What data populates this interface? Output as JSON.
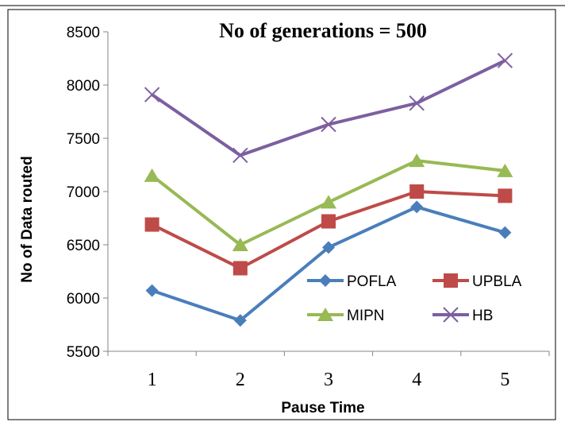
{
  "chart_data": {
    "type": "line",
    "title": "No of generations = 500",
    "xlabel": "Pause Time",
    "ylabel": "No of Data routed",
    "categories": [
      "1",
      "2",
      "3",
      "4",
      "5"
    ],
    "ylim": [
      5500,
      8500
    ],
    "yticks": [
      "5500",
      "6000",
      "6500",
      "7000",
      "7500",
      "8000",
      "8500"
    ],
    "grid": false,
    "legend_position": "lower-right",
    "series": [
      {
        "name": "POFLA",
        "values": [
          6070,
          5790,
          6475,
          6855,
          6615
        ],
        "color": "#4a7ebb",
        "marker": "diamond"
      },
      {
        "name": "UPBLA",
        "values": [
          6690,
          6280,
          6720,
          7000,
          6960
        ],
        "color": "#be4b48",
        "marker": "square"
      },
      {
        "name": "MIPN",
        "values": [
          7150,
          6500,
          6900,
          7290,
          7195
        ],
        "color": "#98b954",
        "marker": "triangle"
      },
      {
        "name": "HB",
        "values": [
          7910,
          7340,
          7630,
          7830,
          8230
        ],
        "color": "#7d5fa0",
        "marker": "x"
      }
    ]
  }
}
